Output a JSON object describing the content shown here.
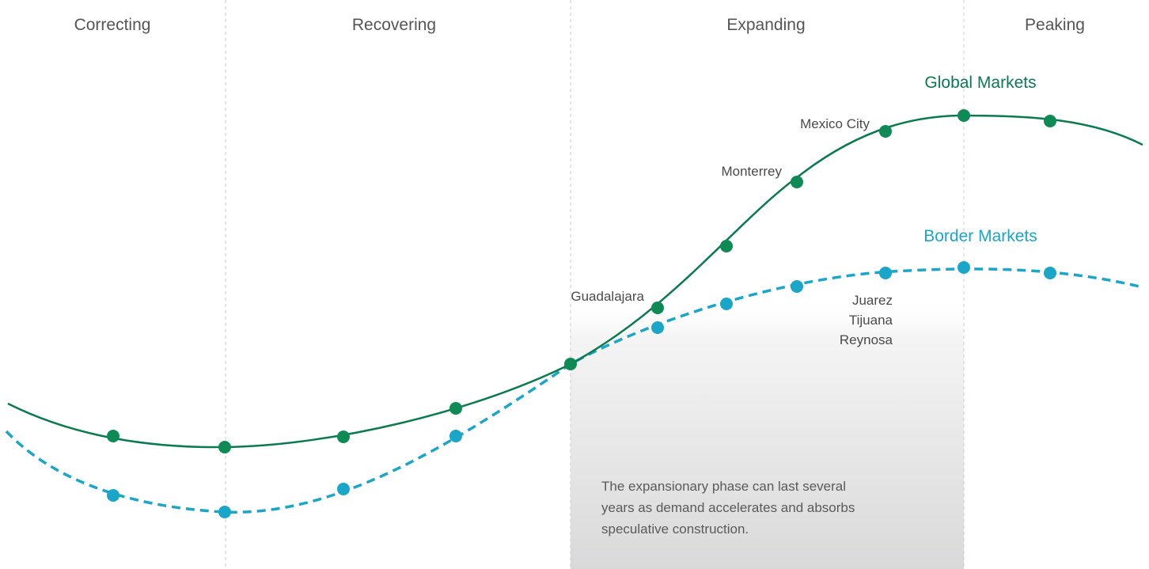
{
  "phases": [
    "Correcting",
    "Recovering",
    "Expanding",
    "Peaking"
  ],
  "series": {
    "global": {
      "label": "Global Markets",
      "color": "#0a7a4f",
      "dot_color": "#0e8a55",
      "style": "solid"
    },
    "border": {
      "label": "Border Markets",
      "color": "#1aa6c9",
      "dot_color": "#1aa6c9",
      "style": "dashed"
    }
  },
  "markets": {
    "guadalajara": "Guadalajara",
    "monterrey": "Monterrey",
    "mexico_city": "Mexico City",
    "border_list": [
      "Juarez",
      "Tijuana",
      "Reynosa"
    ]
  },
  "note_lines": [
    "The expansionary phase can last several",
    "years as demand accelerates and absorbs",
    "speculative construction."
  ],
  "colors": {
    "divider": "#c8c8c8",
    "phase_text": "#555555",
    "shade_top": "#ffffff",
    "shade_bottom": "#d9d9da"
  }
}
